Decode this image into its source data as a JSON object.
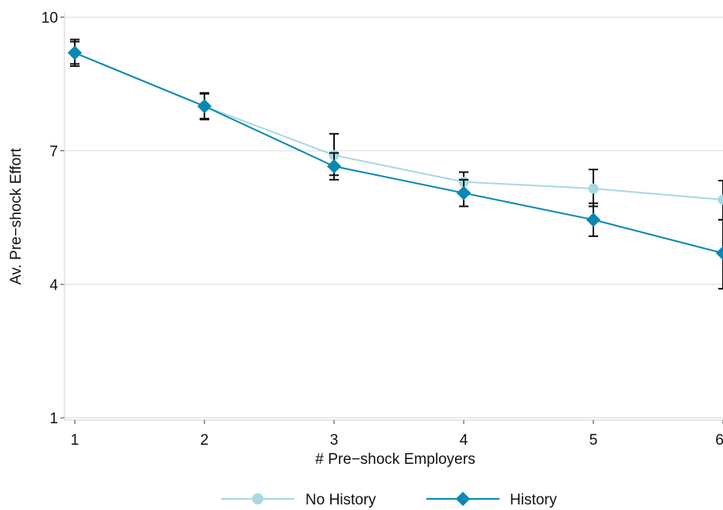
{
  "chart_data": {
    "type": "line",
    "title": "",
    "xlabel": "# Pre−shock Employers",
    "ylabel": "Av. Pre−shock Effort",
    "x": [
      1,
      2,
      3,
      4,
      5,
      6
    ],
    "x_tick_labels": [
      "1",
      "2",
      "3",
      "4",
      "5",
      "6"
    ],
    "y_ticks": [
      1,
      4,
      7,
      10
    ],
    "y_tick_labels": [
      "1",
      "4",
      "7",
      "10"
    ],
    "xlim": [
      0.92,
      6.0
    ],
    "ylim": [
      0.95,
      10.1
    ],
    "grid": "horizontal",
    "legend_position": "bottom",
    "series": [
      {
        "name": "No History",
        "marker": "circle",
        "color": "#a8d8e2",
        "values": [
          9.2,
          8.0,
          6.9,
          6.3,
          6.15,
          5.9
        ],
        "ci_low": [
          8.95,
          7.72,
          6.45,
          6.07,
          5.75,
          5.45
        ],
        "ci_high": [
          9.45,
          8.28,
          7.38,
          6.52,
          6.58,
          6.33
        ]
      },
      {
        "name": "History",
        "marker": "diamond",
        "color": "#0a88b3",
        "values": [
          9.2,
          8.0,
          6.65,
          6.05,
          5.45,
          4.7
        ],
        "ci_low": [
          8.9,
          7.7,
          6.35,
          5.75,
          5.08,
          3.9
        ],
        "ci_high": [
          9.5,
          8.3,
          6.95,
          6.35,
          5.82,
          5.45
        ]
      }
    ]
  }
}
